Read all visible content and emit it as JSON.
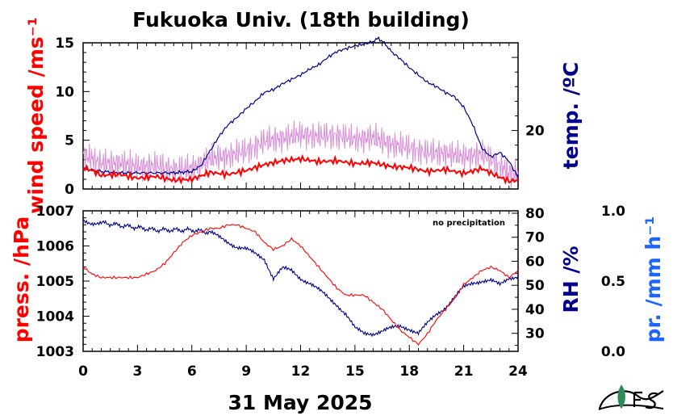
{
  "title": "Fukuoka Univ. (18th building)",
  "date_label": "31 May 2025",
  "x_ticks": [
    "0",
    "3",
    "6",
    "9",
    "12",
    "15",
    "18",
    "21",
    "24"
  ],
  "top_panel": {
    "left_axis_label": "wind speed /ms⁻¹",
    "left_ticks": [
      "0",
      "5",
      "10",
      "15"
    ],
    "right_axis_label": "temp. /ºC",
    "right_ticks": [
      "20"
    ]
  },
  "bottom_panel": {
    "left_axis_label": "press. /hPa",
    "left_ticks": [
      "1003",
      "1004",
      "1005",
      "1006",
      "1007"
    ],
    "right_axis_label": "RH /%",
    "right_ticks": [
      "30",
      "40",
      "50",
      "60",
      "70",
      "80"
    ],
    "extra_axis_label": "pr. /mm h⁻¹",
    "extra_ticks": [
      "0.0",
      "0.5",
      "1.0"
    ],
    "note": "no precipitation"
  },
  "colors": {
    "wind": "#ff0000",
    "wind_gust": "#d890d8",
    "temperature": "#00008b",
    "pressure": "#ff0000",
    "humidity": "#00008b",
    "precip_label": "#1e64ff",
    "logo_leaf": "#2e8b57"
  },
  "logo_icon": "fes-logo-icon",
  "chart_data": [
    {
      "type": "line",
      "x_unit": "hour",
      "xlim": [
        0,
        24
      ],
      "y_left": {
        "label": "wind speed /ms⁻¹",
        "ylim": [
          0,
          15
        ]
      },
      "y_right": {
        "label": "temp. /ºC",
        "ylim": [
          16,
          26
        ]
      },
      "series": [
        {
          "axis": "right",
          "color": "temperature",
          "x": [
            0,
            1,
            2,
            3,
            4,
            5,
            6,
            6.5,
            7,
            7.5,
            8,
            8.5,
            9,
            9.5,
            10,
            10.5,
            11,
            11.5,
            12,
            12.5,
            13,
            13.5,
            14,
            14.5,
            15,
            15.5,
            16,
            16.3,
            16.7,
            17,
            17.5,
            18,
            18.5,
            19,
            19.5,
            20,
            20.5,
            21,
            21.5,
            22,
            22.5,
            23,
            23.5,
            24
          ],
          "y": [
            17.4,
            17.2,
            17.1,
            17.1,
            17.1,
            17.1,
            17.2,
            17.6,
            18.6,
            19.6,
            20.4,
            20.9,
            21.5,
            22.0,
            22.6,
            22.8,
            23.2,
            23.5,
            23.8,
            24.2,
            24.5,
            25.0,
            25.4,
            25.6,
            25.8,
            25.9,
            26.1,
            26.3,
            25.9,
            25.4,
            24.9,
            24.3,
            23.8,
            23.3,
            23.0,
            22.6,
            22.3,
            21.6,
            20.4,
            18.8,
            18.2,
            18.5,
            17.9,
            16.8
          ]
        },
        {
          "axis": "left",
          "color": "wind",
          "x": [
            0,
            0.5,
            1,
            2,
            3,
            4,
            5,
            6,
            7,
            8,
            9,
            10,
            11,
            12,
            13,
            14,
            15,
            16,
            17,
            18,
            19,
            20,
            21,
            22,
            23,
            23.5,
            24
          ],
          "y": [
            2.2,
            1.9,
            1.4,
            1.5,
            1.1,
            1.3,
            0.9,
            1.0,
            1.7,
            1.5,
            1.9,
            2.5,
            2.9,
            3.1,
            2.8,
            2.9,
            2.6,
            2.7,
            2.3,
            2.2,
            1.8,
            2.0,
            1.6,
            2.1,
            1.2,
            0.8,
            0.9
          ]
        },
        {
          "axis": "left",
          "color": "wind_gust",
          "x": [
            0,
            0.5,
            1,
            2,
            3,
            4,
            5,
            6,
            7,
            8,
            9,
            10,
            11,
            12,
            13,
            14,
            15,
            16,
            17,
            18,
            19,
            20,
            21,
            22,
            23,
            23.5,
            24
          ],
          "y": [
            3.6,
            3.1,
            2.6,
            2.7,
            2.3,
            2.4,
            2.0,
            2.1,
            3.1,
            3.4,
            3.9,
            4.9,
            5.2,
            5.6,
            5.4,
            5.5,
            5.1,
            5.3,
            4.6,
            4.2,
            3.7,
            3.7,
            3.3,
            3.6,
            2.4,
            1.7,
            1.5
          ]
        }
      ]
    },
    {
      "type": "line",
      "x_unit": "hour",
      "xlim": [
        0,
        24
      ],
      "y_left": {
        "label": "press. /hPa",
        "ylim": [
          1003,
          1007
        ]
      },
      "y_right": {
        "label": "RH /%",
        "ylim": [
          22.5,
          81
        ]
      },
      "y_extra": {
        "label": "pr. /mm h⁻¹",
        "ylim": [
          0,
          1
        ]
      },
      "series": [
        {
          "axis": "left",
          "color": "pressure",
          "x": [
            0,
            0.5,
            1,
            2,
            3,
            4,
            4.5,
            5,
            5.5,
            6,
            6.5,
            7,
            7.5,
            8,
            8.5,
            9,
            9.5,
            10,
            10.5,
            11,
            11.5,
            12,
            12.5,
            13,
            13.5,
            14,
            14.5,
            15,
            15.5,
            16,
            16.5,
            17,
            17.5,
            18,
            18.5,
            19,
            19.5,
            20,
            20.5,
            21,
            21.5,
            22,
            22.5,
            23,
            23.5,
            24
          ],
          "y": [
            1005.4,
            1005.2,
            1005.1,
            1005.1,
            1005.1,
            1005.3,
            1005.5,
            1005.8,
            1006.1,
            1006.3,
            1006.4,
            1006.5,
            1006.5,
            1006.6,
            1006.6,
            1006.5,
            1006.4,
            1006.1,
            1005.9,
            1006.0,
            1006.2,
            1006.0,
            1005.7,
            1005.4,
            1005.1,
            1004.8,
            1004.6,
            1004.6,
            1004.6,
            1004.4,
            1004.2,
            1003.9,
            1003.6,
            1003.4,
            1003.2,
            1003.5,
            1003.9,
            1004.2,
            1004.5,
            1004.9,
            1005.1,
            1005.3,
            1005.4,
            1005.3,
            1005.1,
            1005.3
          ]
        },
        {
          "axis": "right",
          "color": "humidity",
          "x": [
            0,
            0.5,
            1,
            2,
            3,
            4,
            5,
            6,
            7,
            7.5,
            8,
            8.5,
            9,
            9.5,
            10,
            10.5,
            11,
            11.5,
            12,
            12.5,
            13,
            13.5,
            14,
            14.5,
            15,
            15.5,
            16,
            16.5,
            17,
            17.5,
            18,
            18.5,
            19,
            19.5,
            20,
            20.5,
            21,
            21.5,
            22,
            22.5,
            23,
            23.5,
            24
          ],
          "y": [
            77,
            76,
            76,
            75,
            74,
            73,
            73,
            73,
            72,
            70,
            68,
            66,
            65,
            63,
            61,
            53,
            57,
            56,
            53,
            51,
            48,
            45,
            42,
            38,
            32,
            30,
            30,
            31,
            32,
            33,
            32,
            30,
            34,
            38,
            41,
            45,
            49,
            51,
            52,
            52,
            50,
            53,
            54
          ]
        },
        {
          "axis": "extra",
          "color": "precip_label",
          "x": [
            0,
            24
          ],
          "y": [
            0,
            0
          ]
        }
      ]
    }
  ]
}
